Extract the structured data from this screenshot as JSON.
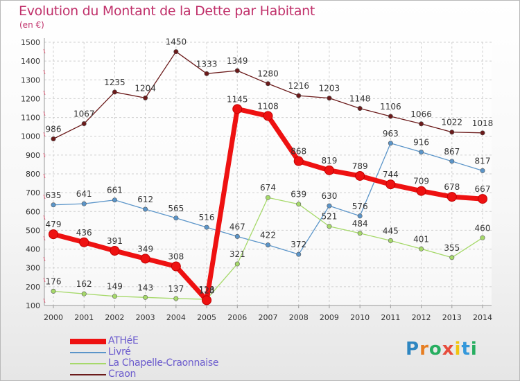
{
  "title": "Evolution du Montant de la Dette par Habitant",
  "subtitle": "(en €)",
  "logo": {
    "text": "Proxiti",
    "letter_colors": [
      "#2e86c1",
      "#e67e22",
      "#27ae60",
      "#e74c3c",
      "#f1c40f",
      "#3498db",
      "#27ae60"
    ]
  },
  "chart_data": {
    "type": "line",
    "categories": [
      "2000",
      "2001",
      "2002",
      "2003",
      "2004",
      "2005",
      "2006",
      "2007",
      "2008",
      "2009",
      "2010",
      "2011",
      "2012",
      "2013",
      "2014"
    ],
    "yticks": [
      "100",
      "200",
      "300",
      "400",
      "500",
      "600",
      "700",
      "800",
      "900",
      "1000",
      "1100",
      "1200",
      "1300",
      "1400",
      "1500"
    ],
    "ylim": [
      100,
      1500
    ],
    "grid": true,
    "legend_position": "bottom-left",
    "series": [
      {
        "name": "Craon",
        "color": "#6b1a1a",
        "emphasis": false,
        "values": [
          986,
          1067,
          1235,
          1204,
          1450,
          1333,
          1349,
          1280,
          1216,
          1203,
          1148,
          1106,
          1066,
          1022,
          1018
        ]
      },
      {
        "name": "Livré",
        "color": "#5b95c9",
        "emphasis": false,
        "values": [
          635,
          641,
          661,
          612,
          565,
          516,
          467,
          422,
          372,
          630,
          576,
          963,
          916,
          867,
          817
        ]
      },
      {
        "name": "La Chapelle-Craonnaise",
        "color": "#a6d96a",
        "emphasis": false,
        "values": [
          176,
          162,
          149,
          143,
          137,
          133,
          321,
          674,
          639,
          521,
          484,
          445,
          401,
          355,
          460
        ]
      },
      {
        "name": "ATHéE",
        "color": "#ee1111",
        "emphasis": true,
        "values": [
          479,
          436,
          391,
          349,
          308,
          128,
          1145,
          1108,
          868,
          819,
          789,
          744,
          709,
          678,
          667
        ]
      }
    ],
    "legend_order": [
      "ATHéE",
      "Livré",
      "La Chapelle-Craonnaise",
      "Craon"
    ]
  }
}
